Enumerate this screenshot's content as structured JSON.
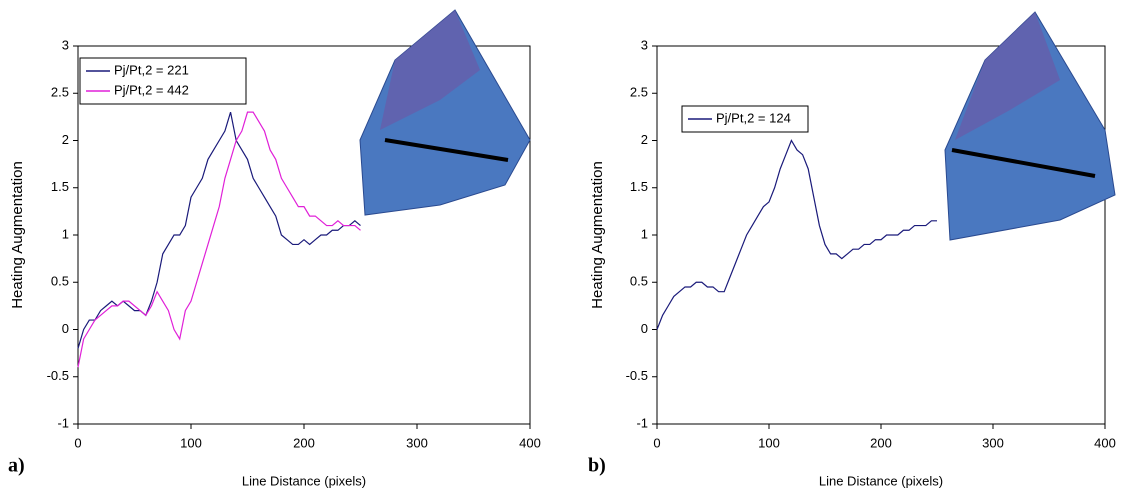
{
  "chart_data": [
    {
      "type": "line",
      "panel_label": "a)",
      "x_label": "Line Distance (pixels)",
      "y_label": "Heating Augmentation",
      "x": [
        0,
        5,
        10,
        15,
        20,
        25,
        30,
        35,
        40,
        45,
        50,
        55,
        60,
        65,
        70,
        75,
        80,
        85,
        90,
        95,
        100,
        105,
        110,
        115,
        120,
        125,
        130,
        135,
        140,
        145,
        150,
        155,
        160,
        165,
        170,
        175,
        180,
        185,
        190,
        195,
        200,
        205,
        210,
        215,
        220,
        225,
        230,
        235,
        240,
        245,
        250
      ],
      "series": [
        {
          "name": "Pj/Pt,2 = 221",
          "color": "#1a1a7a",
          "values": [
            -0.2,
            0.0,
            0.1,
            0.1,
            0.2,
            0.25,
            0.3,
            0.25,
            0.3,
            0.25,
            0.2,
            0.2,
            0.15,
            0.3,
            0.5,
            0.8,
            0.9,
            1.0,
            1.0,
            1.1,
            1.4,
            1.5,
            1.6,
            1.8,
            1.9,
            2.0,
            2.1,
            2.3,
            2.0,
            1.9,
            1.8,
            1.6,
            1.5,
            1.4,
            1.3,
            1.2,
            1.0,
            0.95,
            0.9,
            0.9,
            0.95,
            0.9,
            0.95,
            1.0,
            1.0,
            1.05,
            1.05,
            1.1,
            1.1,
            1.15,
            1.1
          ]
        },
        {
          "name": "Pj/Pt,2 = 442",
          "color": "#e020d8",
          "values": [
            -0.4,
            -0.1,
            0.0,
            0.1,
            0.15,
            0.2,
            0.25,
            0.25,
            0.3,
            0.3,
            0.25,
            0.2,
            0.15,
            0.25,
            0.4,
            0.3,
            0.2,
            0.0,
            -0.1,
            0.2,
            0.3,
            0.5,
            0.7,
            0.9,
            1.1,
            1.3,
            1.6,
            1.8,
            2.0,
            2.1,
            2.3,
            2.3,
            2.2,
            2.1,
            1.9,
            1.8,
            1.6,
            1.5,
            1.4,
            1.3,
            1.3,
            1.2,
            1.2,
            1.15,
            1.1,
            1.1,
            1.15,
            1.1,
            1.1,
            1.1,
            1.05
          ]
        }
      ],
      "xlim": [
        0,
        400
      ],
      "xticks": [
        0,
        100,
        200,
        300,
        400
      ],
      "ylim": [
        -1,
        3
      ],
      "yticks": [
        -1,
        -0.5,
        0,
        0.5,
        1,
        1.5,
        2,
        2.5,
        3
      ]
    },
    {
      "type": "line",
      "panel_label": "b)",
      "x_label": "Line Distance (pixels)",
      "y_label": "Heating Augmentation",
      "x": [
        0,
        5,
        10,
        15,
        20,
        25,
        30,
        35,
        40,
        45,
        50,
        55,
        60,
        65,
        70,
        75,
        80,
        85,
        90,
        95,
        100,
        105,
        110,
        115,
        120,
        125,
        130,
        135,
        140,
        145,
        150,
        155,
        160,
        165,
        170,
        175,
        180,
        185,
        190,
        195,
        200,
        205,
        210,
        215,
        220,
        225,
        230,
        235,
        240,
        245,
        250
      ],
      "series": [
        {
          "name": "Pj/Pt,2 = 124",
          "color": "#1a1a7a",
          "values": [
            0.0,
            0.15,
            0.25,
            0.35,
            0.4,
            0.45,
            0.45,
            0.5,
            0.5,
            0.45,
            0.45,
            0.4,
            0.4,
            0.55,
            0.7,
            0.85,
            1.0,
            1.1,
            1.2,
            1.3,
            1.35,
            1.5,
            1.7,
            1.85,
            2.0,
            1.9,
            1.85,
            1.7,
            1.4,
            1.1,
            0.9,
            0.8,
            0.8,
            0.75,
            0.8,
            0.85,
            0.85,
            0.9,
            0.9,
            0.95,
            0.95,
            1.0,
            1.0,
            1.0,
            1.05,
            1.05,
            1.1,
            1.1,
            1.1,
            1.15,
            1.15
          ]
        }
      ],
      "xlim": [
        0,
        400
      ],
      "xticks": [
        0,
        100,
        200,
        300,
        400
      ],
      "ylim": [
        -1,
        3
      ],
      "yticks": [
        -1,
        -0.5,
        0,
        0.5,
        1,
        1.5,
        2,
        2.5,
        3
      ]
    }
  ]
}
